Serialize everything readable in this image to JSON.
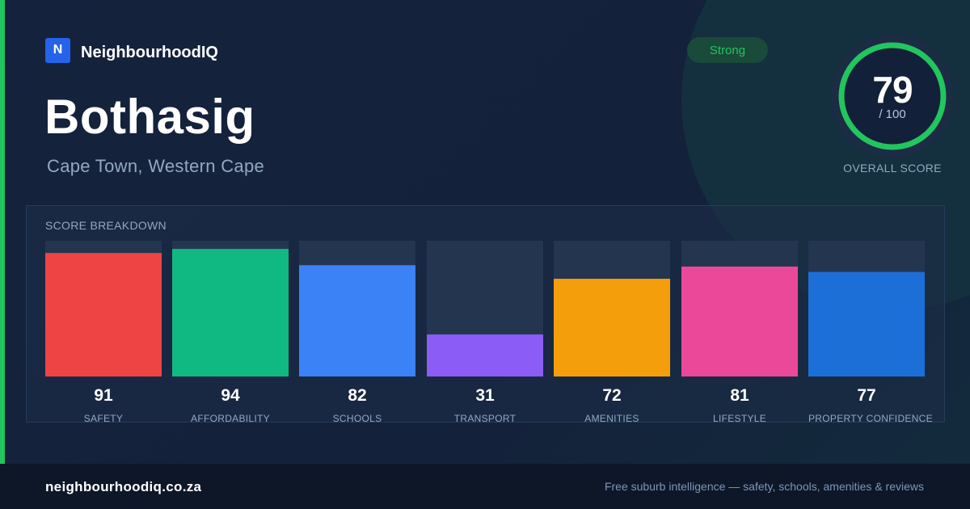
{
  "brand": {
    "logo_letter": "N",
    "name": "NeighbourhoodIQ",
    "color": "#2563eb"
  },
  "suburb": {
    "name": "Bothasig",
    "location": "Cape Town, Western Cape"
  },
  "rating": {
    "badge": "Strong",
    "score": "79",
    "max": "/ 100",
    "caption": "OVERALL SCORE",
    "score_value": 79,
    "ring_color": "#22c55e"
  },
  "breakdown": {
    "title": "SCORE BREAKDOWN",
    "track_color": "#243550",
    "metrics": [
      {
        "label": "SAFETY",
        "value": "91",
        "score": 91,
        "color": "#ef4444"
      },
      {
        "label": "AFFORDABILITY",
        "value": "94",
        "score": 94,
        "color": "#10b981"
      },
      {
        "label": "SCHOOLS",
        "value": "82",
        "score": 82,
        "color": "#3b82f6"
      },
      {
        "label": "TRANSPORT",
        "value": "31",
        "score": 31,
        "color": "#8b5cf6"
      },
      {
        "label": "AMENITIES",
        "value": "72",
        "score": 72,
        "color": "#f59e0b"
      },
      {
        "label": "LIFESTYLE",
        "value": "81",
        "score": 81,
        "color": "#ec4899"
      },
      {
        "label": "PROPERTY CONFIDENCE",
        "value": "77",
        "score": 77,
        "color": "#1d6fd8"
      }
    ]
  },
  "footer": {
    "domain": "neighbourhoodiq.co.za",
    "tagline": "Free suburb intelligence — safety, schools, amenities & reviews"
  }
}
